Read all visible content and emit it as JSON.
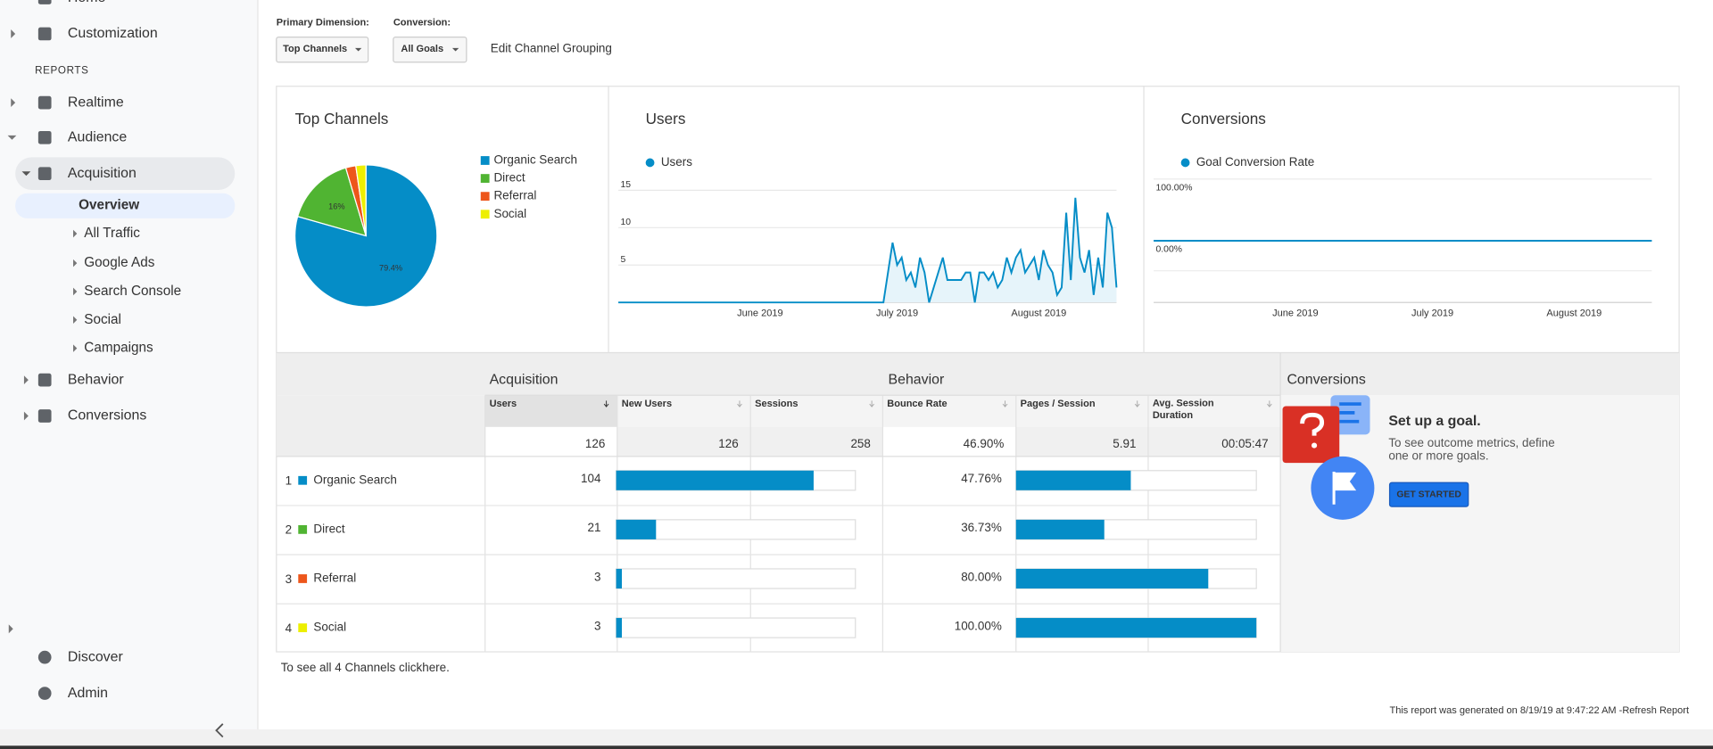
{
  "sidebar": {
    "items": [
      "Home",
      "Customization",
      "REPORTS",
      "Realtime",
      "Audience",
      "Acquisition",
      "Overview",
      "All Traffic",
      "Google Ads",
      "Search Console",
      "Social",
      "Campaigns",
      "Behavior",
      "Conversions",
      "Discover",
      "Admin"
    ]
  },
  "filters": {
    "primary_label": "Primary Dimension:",
    "primary_value": "Top Channels",
    "conversion_label": "Conversion:",
    "conversion_value": "All Goals",
    "edit_link": "Edit Channel Grouping"
  },
  "chart_data": [
    {
      "type": "pie",
      "title": "Top Channels",
      "categories": [
        "Organic Search",
        "Direct",
        "Referral",
        "Social"
      ],
      "values": [
        79.4,
        16,
        2.3,
        2.3
      ],
      "value_labels": [
        "79.4%",
        "16%",
        null,
        null
      ],
      "colors": [
        "#058dc7",
        "#50b432",
        "#ed561b",
        "#edef00"
      ]
    },
    {
      "type": "line",
      "title": "Users",
      "xticks": [
        {
          "value": 31,
          "label": "June 2019"
        },
        {
          "value": 61,
          "label": "July 2019"
        },
        {
          "value": 92,
          "label": "August 2019"
        }
      ],
      "xlim": [
        0,
        109
      ],
      "ylim": [
        0,
        16.5
      ],
      "yticks": [
        5,
        10,
        15
      ],
      "grid": true,
      "series": [
        {
          "name": "Users",
          "color": "#058dc7",
          "values": [
            0,
            0,
            0,
            0,
            0,
            0,
            0,
            0,
            0,
            0,
            0,
            0,
            0,
            0,
            0,
            0,
            0,
            0,
            0,
            0,
            0,
            0,
            0,
            0,
            0,
            0,
            0,
            0,
            0,
            0,
            0,
            0,
            0,
            0,
            0,
            0,
            0,
            0,
            0,
            0,
            0,
            0,
            0,
            0,
            0,
            0,
            0,
            0,
            0,
            0,
            0,
            0,
            0,
            0,
            0,
            0,
            0,
            0,
            0,
            4,
            8,
            5,
            6,
            3,
            4,
            2,
            6,
            4,
            0,
            2,
            4,
            6,
            3,
            3,
            3,
            3,
            4,
            4,
            0,
            4,
            4,
            3,
            4,
            2,
            3,
            6,
            4,
            6,
            7,
            4,
            5,
            6,
            3,
            7,
            5,
            4,
            1,
            2,
            12,
            3,
            14,
            6,
            4,
            7,
            1,
            6,
            2,
            12,
            10,
            2
          ]
        }
      ]
    },
    {
      "type": "line",
      "title": "Conversions",
      "xticks": [
        {
          "value": 31,
          "label": "June 2019"
        },
        {
          "value": 61,
          "label": "July 2019"
        },
        {
          "value": 92,
          "label": "August 2019"
        }
      ],
      "xlim": [
        0,
        109
      ],
      "ylim": [
        -100,
        100
      ],
      "yticks": [
        {
          "value": 100,
          "label": "100.00%"
        },
        {
          "value": 0,
          "label": "0.00%"
        }
      ],
      "grid": true,
      "series": [
        {
          "name": "Goal Conversion Rate",
          "color": "#058dc7",
          "values": [
            0,
            0,
            0,
            0,
            0,
            0,
            0,
            0,
            0,
            0,
            0,
            0,
            0,
            0,
            0,
            0,
            0,
            0,
            0,
            0,
            0,
            0,
            0,
            0,
            0,
            0,
            0,
            0,
            0,
            0,
            0,
            0,
            0,
            0,
            0,
            0,
            0,
            0,
            0,
            0,
            0,
            0,
            0,
            0,
            0,
            0,
            0,
            0,
            0,
            0,
            0,
            0,
            0,
            0,
            0,
            0,
            0,
            0,
            0,
            0,
            0,
            0,
            0,
            0,
            0,
            0,
            0,
            0,
            0,
            0,
            0,
            0,
            0,
            0,
            0,
            0,
            0,
            0,
            0,
            0,
            0,
            0,
            0,
            0,
            0,
            0,
            0,
            0,
            0,
            0,
            0,
            0,
            0,
            0,
            0,
            0,
            0,
            0,
            0,
            0,
            0,
            0,
            0,
            0,
            0,
            0,
            0,
            0,
            0,
            0
          ]
        }
      ]
    }
  ],
  "table": {
    "groups": [
      "Acquisition",
      "Behavior",
      "Conversions"
    ],
    "columns": [
      "Users",
      "New Users",
      "Sessions",
      "Bounce Rate",
      "Pages / Session",
      "Avg. Session Duration"
    ],
    "totals": {
      "users": 126,
      "new_users": 126,
      "sessions": 258,
      "bounce_rate": "46.90%",
      "pages_per_session": 5.91,
      "avg_duration": "00:05:47"
    },
    "rows": [
      {
        "rank": 1,
        "name": "Organic Search",
        "users": 104,
        "bounce_rate": {
          "value": 47.76,
          "label": "47.76%"
        }
      },
      {
        "rank": 2,
        "name": "Direct",
        "users": 21,
        "bounce_rate": {
          "value": 36.73,
          "label": "36.73%"
        }
      },
      {
        "rank": 3,
        "name": "Referral",
        "users": 3,
        "bounce_rate": {
          "value": 80,
          "label": "80.00%"
        }
      },
      {
        "rank": 4,
        "name": "Social",
        "users": 3,
        "bounce_rate": {
          "value": 100,
          "label": "100.00%"
        }
      }
    ]
  },
  "goal": {
    "title": "Set up a goal.",
    "text": "To see outcome metrics, define one or more goals.",
    "button": "GET STARTED"
  },
  "footer": {
    "see_all": "To see all 4 Channels click ",
    "here_link": "here.",
    "generated": "This report was generated on 8/19/19 at 9:47:22 AM - ",
    "refresh_link": "Refresh Report"
  }
}
